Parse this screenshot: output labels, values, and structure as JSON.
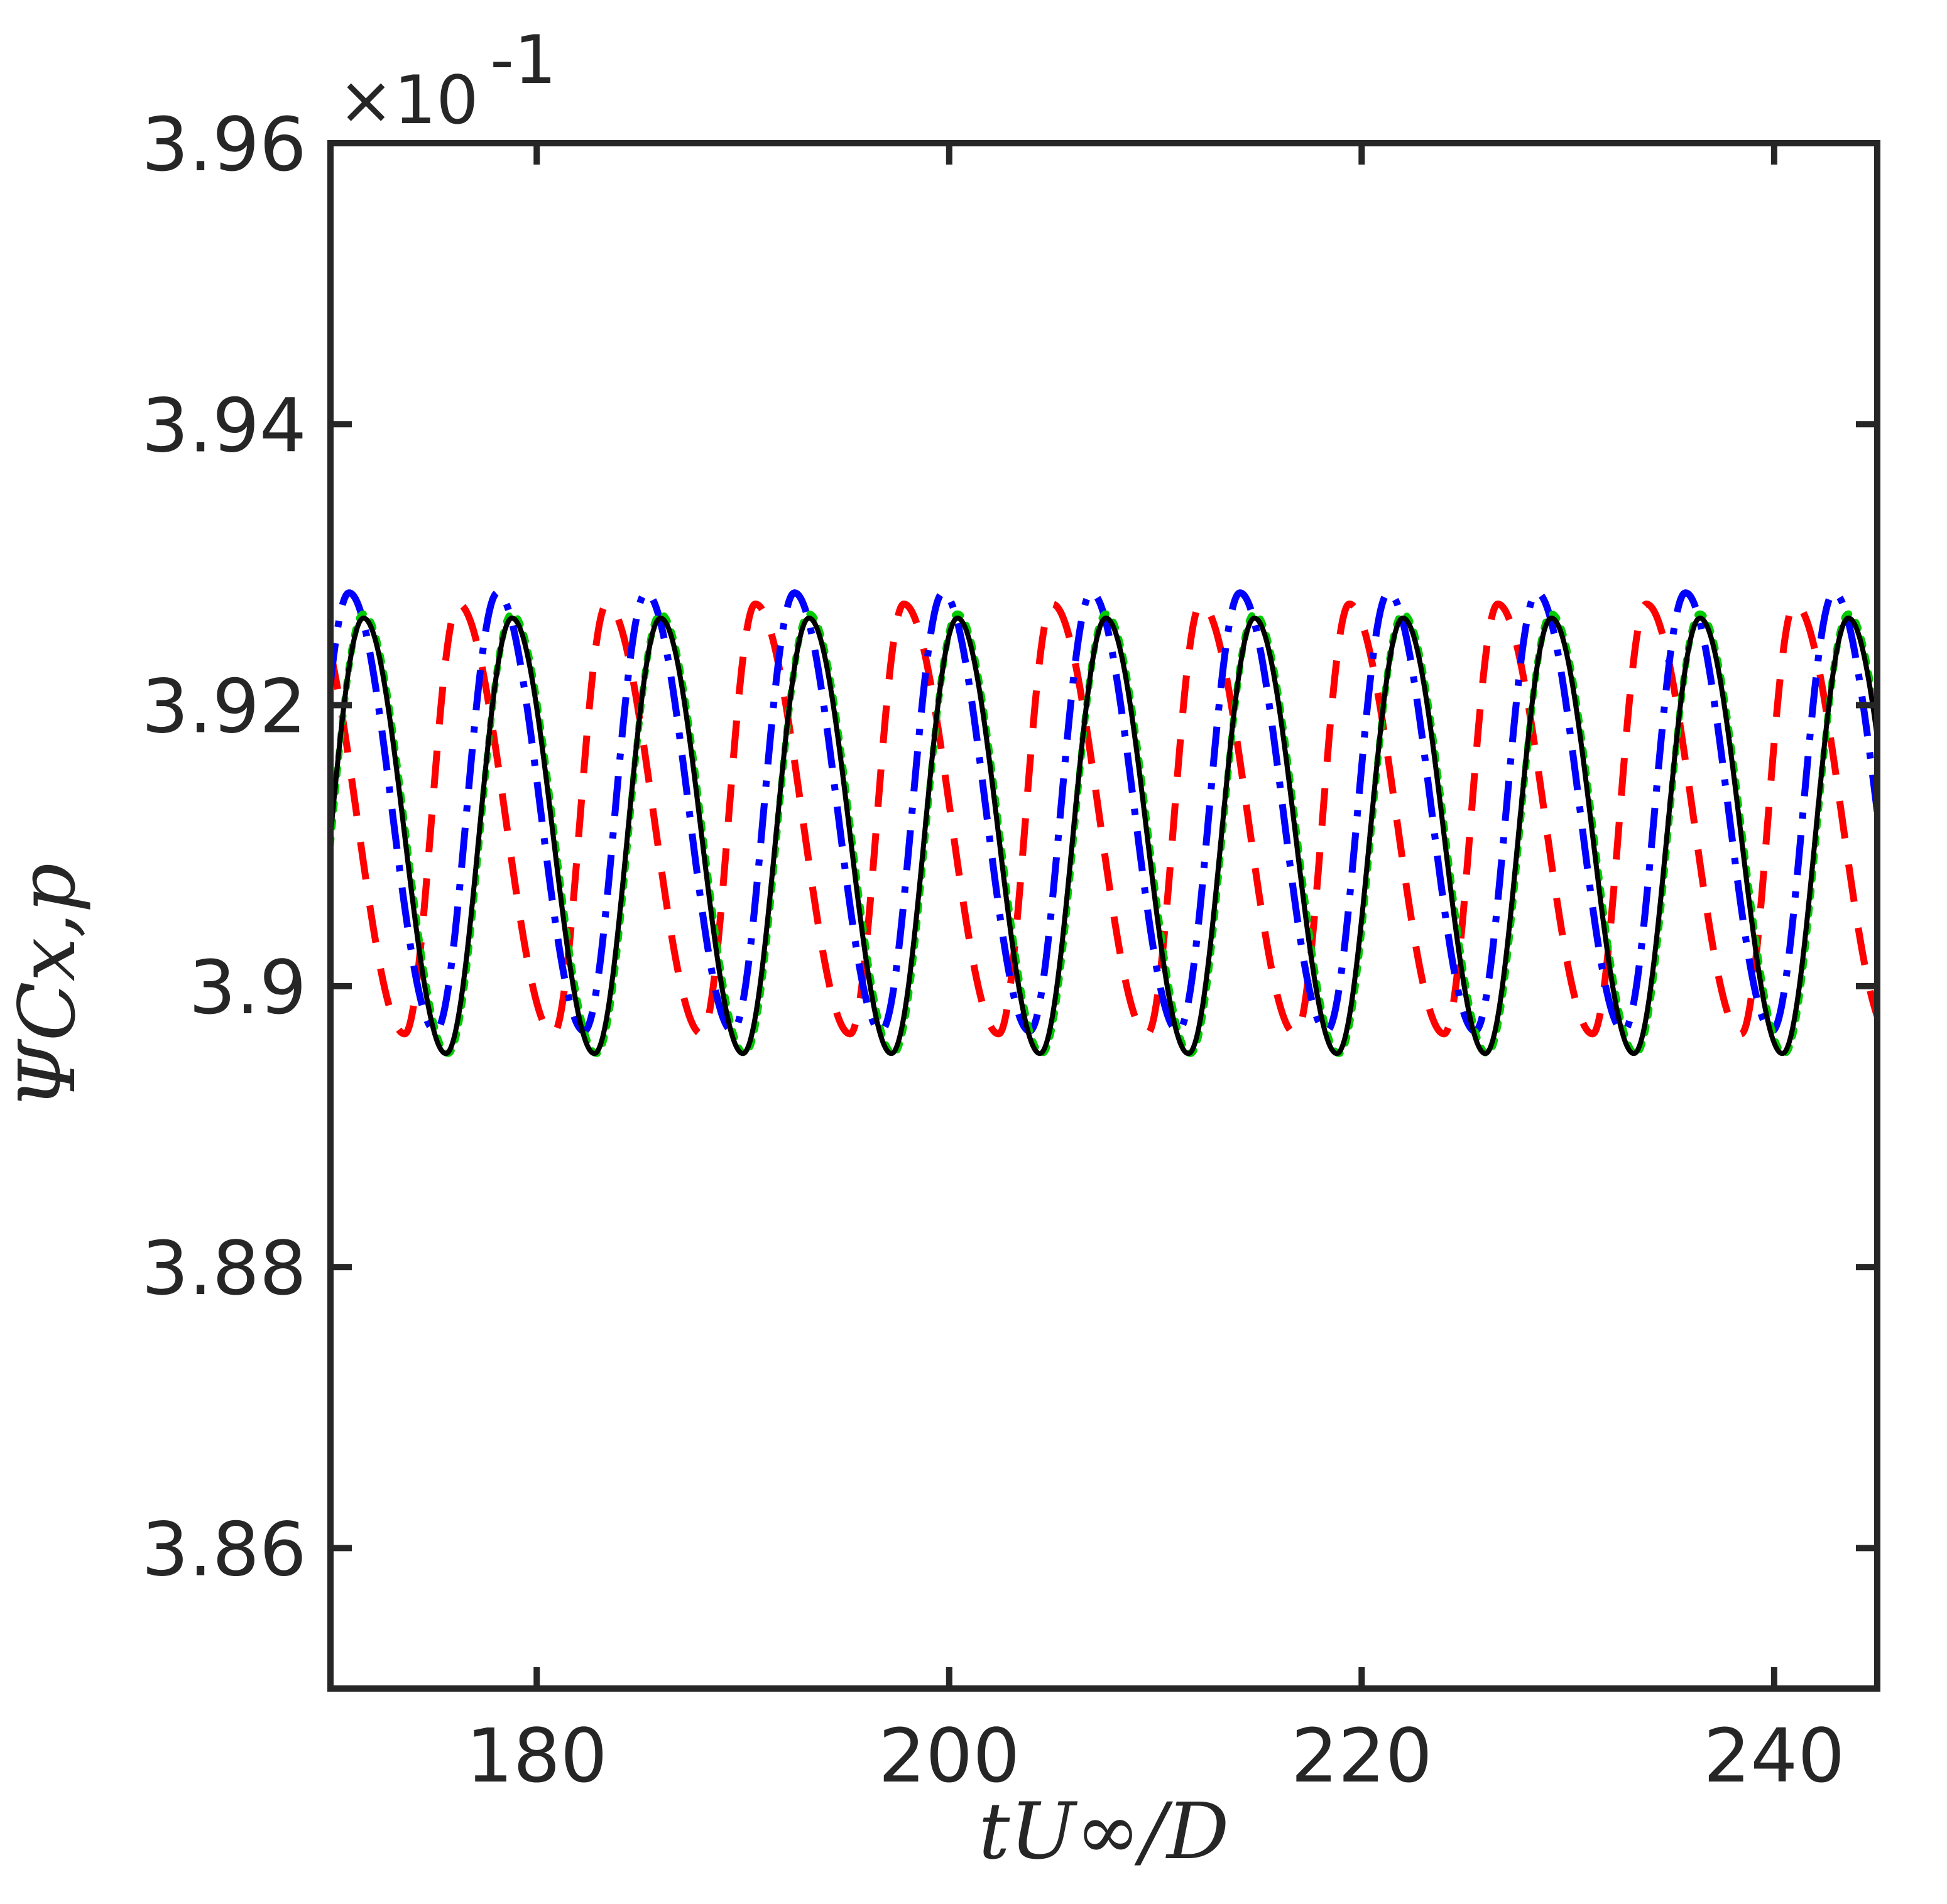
{
  "chart_data": {
    "type": "line",
    "title": "",
    "xlabel": "tU∞/D",
    "ylabel": "ΨCx,p",
    "y_exponent_label": "×10",
    "y_exponent_power": "-1",
    "xlim": [
      170,
      245
    ],
    "ylim": [
      3.85,
      3.96
    ],
    "xticks": [
      180,
      200,
      220,
      240
    ],
    "yticks": [
      3.86,
      3.88,
      3.9,
      3.92,
      3.94,
      3.96
    ],
    "ytick_labels": [
      "3.86",
      "3.88",
      "3.9",
      "3.92",
      "3.94",
      "3.96"
    ],
    "xtick_labels": [
      "180",
      "200",
      "220",
      "240"
    ],
    "grid": false,
    "series": [
      {
        "color": "#ff0000",
        "line_style": "dashed",
        "period": 7.2,
        "min": 3.8966,
        "max": 3.9272,
        "peak_time": 176.2,
        "trough_time": 173.6
      },
      {
        "color": "#0000ff",
        "line_style": "dashdot",
        "period": 7.2,
        "min": 3.8968,
        "max": 3.928,
        "peak_time": 170.9,
        "trough_time": 175.1
      },
      {
        "color": "#00cc00",
        "line_style": "dotted",
        "period": 7.2,
        "min": 3.8952,
        "max": 3.9265,
        "peak_time": 171.6,
        "trough_time": 175.7
      },
      {
        "color": "#000000",
        "line_style": "solid",
        "period": 7.2,
        "min": 3.8952,
        "max": 3.9262,
        "peak_time": 171.6,
        "trough_time": 175.6
      }
    ]
  }
}
